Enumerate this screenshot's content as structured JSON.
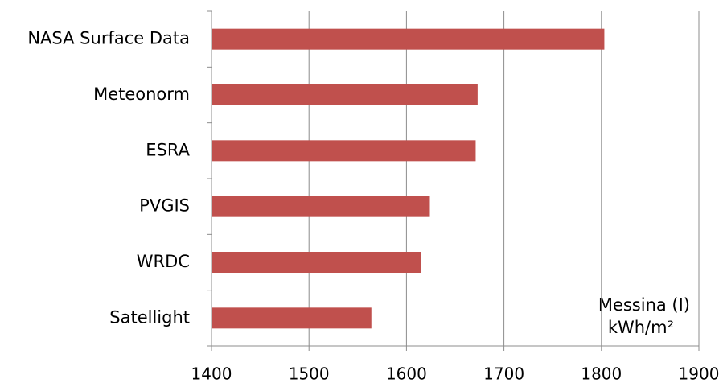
{
  "chart_data": {
    "type": "barh",
    "categories": [
      "NASA Surface Data",
      "Meteonorm",
      "ESRA",
      "PVGIS",
      "WRDC",
      "Satellight"
    ],
    "values": [
      1803,
      1673,
      1671,
      1624,
      1615,
      1564
    ],
    "color": "#c0504d",
    "xlim": [
      1400,
      1900
    ],
    "xticks": [
      1400,
      1500,
      1600,
      1700,
      1800,
      1900
    ],
    "grid": true,
    "annotation": [
      "Messina (I)",
      "kWh/m²"
    ]
  }
}
